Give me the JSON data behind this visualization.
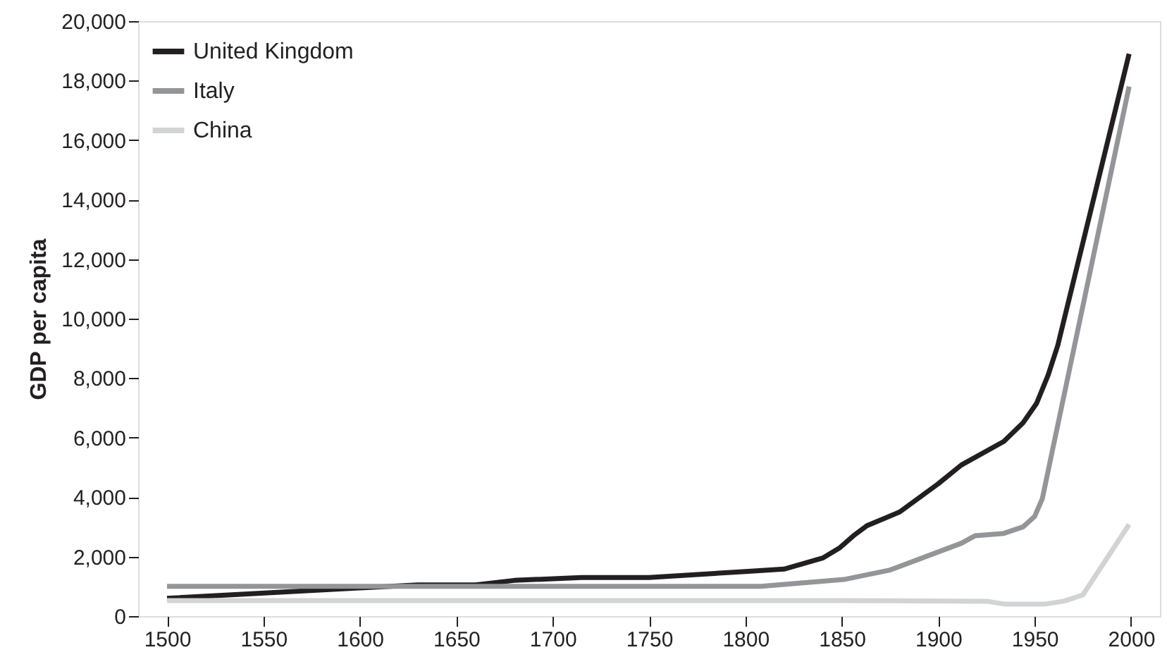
{
  "chart_data": {
    "type": "line",
    "ylabel": "GDP per capita",
    "xlim": [
      1485,
      2015
    ],
    "xticks": [
      1500,
      1550,
      1600,
      1650,
      1700,
      1750,
      1800,
      1850,
      1900,
      1950,
      2000
    ],
    "ylim": [
      0,
      20000
    ],
    "yticks": [
      {
        "value": 0,
        "label": "0"
      },
      {
        "value": 2000,
        "label": "2,000"
      },
      {
        "value": 4000,
        "label": "4,000"
      },
      {
        "value": 6000,
        "label": "6,000"
      },
      {
        "value": 8000,
        "label": "8,000"
      },
      {
        "value": 10000,
        "label": "10,000"
      },
      {
        "value": 12000,
        "label": "12,000"
      },
      {
        "value": 14000,
        "label": "14,000"
      },
      {
        "value": 16000,
        "label": "16,000"
      },
      {
        "value": 18000,
        "label": "18,000"
      },
      {
        "value": 20000,
        "label": "20,000"
      }
    ],
    "grid": false,
    "legend": "top left",
    "line_style": "solid",
    "series": [
      {
        "name": "United Kingdom",
        "color": "#231f20",
        "x": [
          1500,
          1600,
          1630,
          1660,
          1680,
          1715,
          1750,
          1800,
          1820,
          1840,
          1849,
          1856,
          1863,
          1880,
          1900,
          1912,
          1934,
          1944,
          1951,
          1957,
          1962,
          1999
        ],
        "values": [
          600,
          950,
          1050,
          1050,
          1200,
          1300,
          1300,
          1500,
          1580,
          1950,
          2300,
          2700,
          3040,
          3500,
          4450,
          5080,
          5870,
          6500,
          7150,
          8100,
          9100,
          18900
        ]
      },
      {
        "name": "Italy",
        "color": "#939598",
        "x": [
          1500,
          1808,
          1851,
          1875,
          1912,
          1919,
          1934,
          1944,
          1950,
          1954,
          1959,
          1999
        ],
        "values": [
          1000,
          1000,
          1230,
          1550,
          2450,
          2700,
          2780,
          3000,
          3350,
          3950,
          5500,
          17800
        ]
      },
      {
        "name": "China",
        "color": "#d1d3d4",
        "x": [
          1500,
          1850,
          1925,
          1935,
          1955,
          1965,
          1975,
          1999
        ],
        "values": [
          520,
          520,
          500,
          400,
          400,
          500,
          710,
          3080
        ]
      }
    ]
  }
}
